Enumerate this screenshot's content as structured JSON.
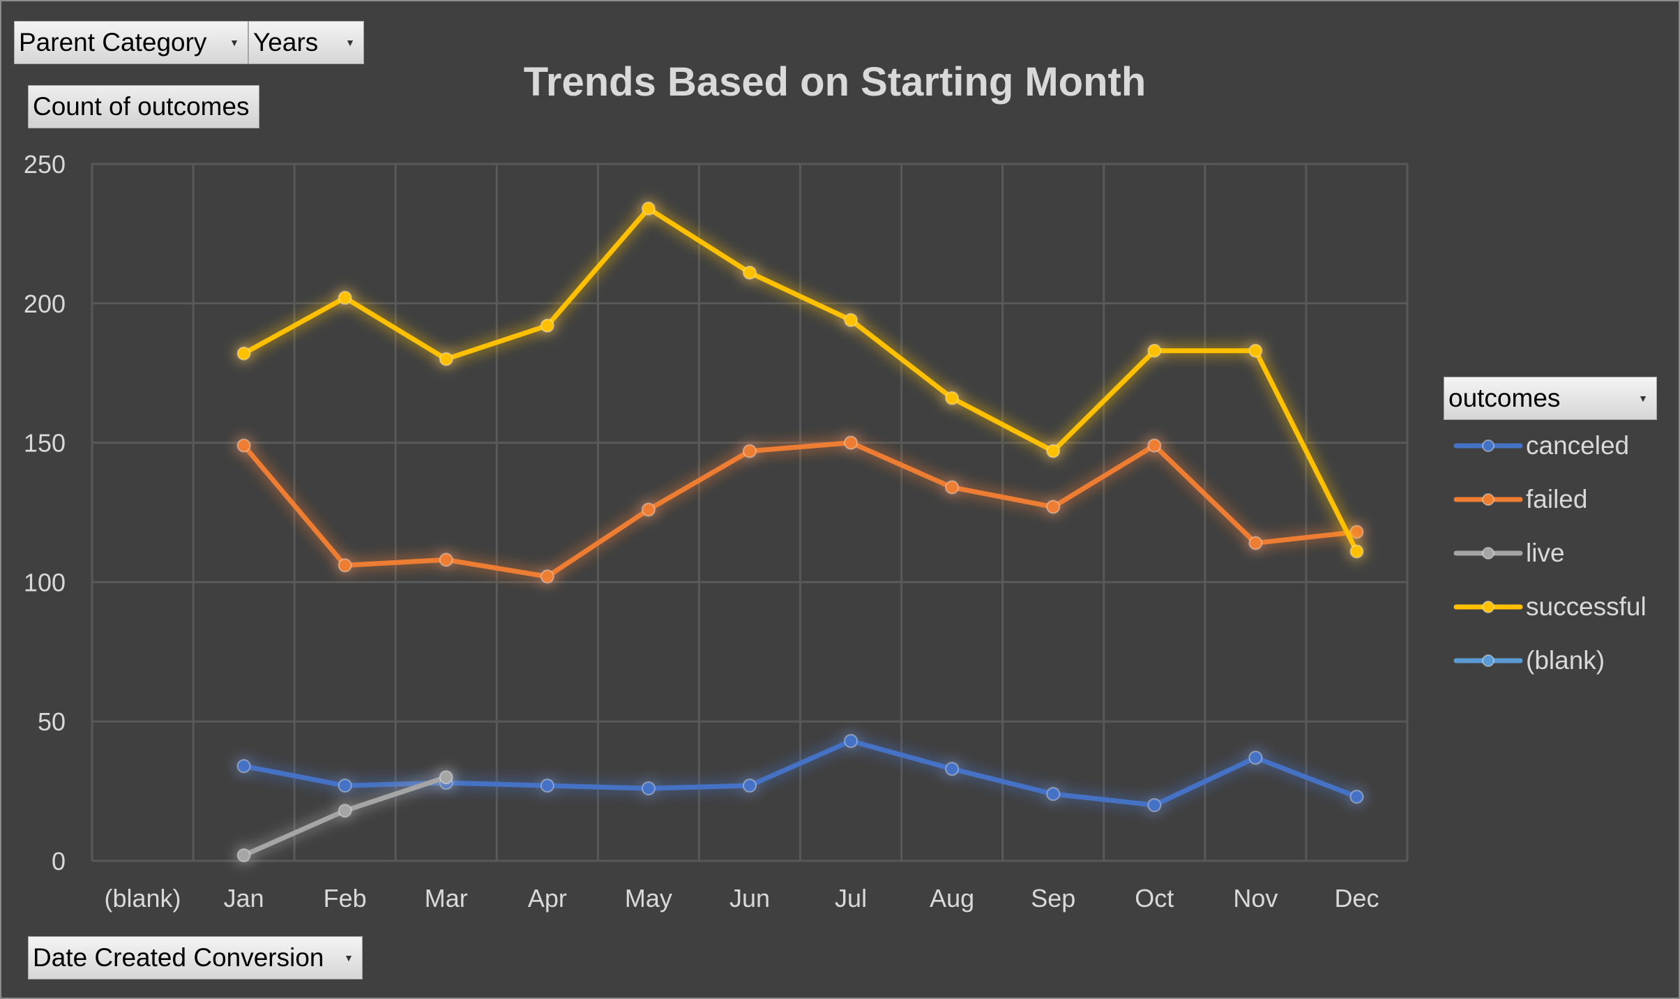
{
  "filters": {
    "parent_category": "Parent Category",
    "years": "Years",
    "value_field": "Count of outcomes",
    "axis_field": "Date Created Conversion",
    "legend_field": "outcomes"
  },
  "colors": {
    "background": "#404040",
    "gridline": "#595959",
    "canceled": "#4472c4",
    "failed": "#ed7d31",
    "live": "#a5a5a5",
    "successful": "#ffc000",
    "blank": "#5b9bd5"
  },
  "chart_data": {
    "type": "line",
    "title": "Trends Based on Starting Month",
    "xlabel": "",
    "ylabel": "",
    "categories": [
      "(blank)",
      "Jan",
      "Feb",
      "Mar",
      "Apr",
      "May",
      "Jun",
      "Jul",
      "Aug",
      "Sep",
      "Oct",
      "Nov",
      "Dec"
    ],
    "ylim": [
      0,
      250
    ],
    "yticks": [
      0,
      50,
      100,
      150,
      200,
      250
    ],
    "grid": true,
    "legend_position": "right",
    "series": [
      {
        "name": "canceled",
        "values": [
          null,
          34,
          27,
          28,
          27,
          26,
          27,
          43,
          33,
          24,
          20,
          37,
          23
        ]
      },
      {
        "name": "failed",
        "values": [
          null,
          149,
          106,
          108,
          102,
          126,
          147,
          150,
          134,
          127,
          149,
          114,
          118
        ]
      },
      {
        "name": "live",
        "values": [
          null,
          2,
          18,
          30,
          null,
          null,
          null,
          null,
          null,
          null,
          null,
          null,
          null
        ]
      },
      {
        "name": "successful",
        "values": [
          null,
          182,
          202,
          180,
          192,
          234,
          211,
          194,
          166,
          147,
          183,
          183,
          111
        ]
      },
      {
        "name": "(blank)",
        "values": [
          null,
          null,
          null,
          null,
          null,
          null,
          null,
          null,
          null,
          null,
          null,
          null,
          null
        ]
      }
    ]
  }
}
